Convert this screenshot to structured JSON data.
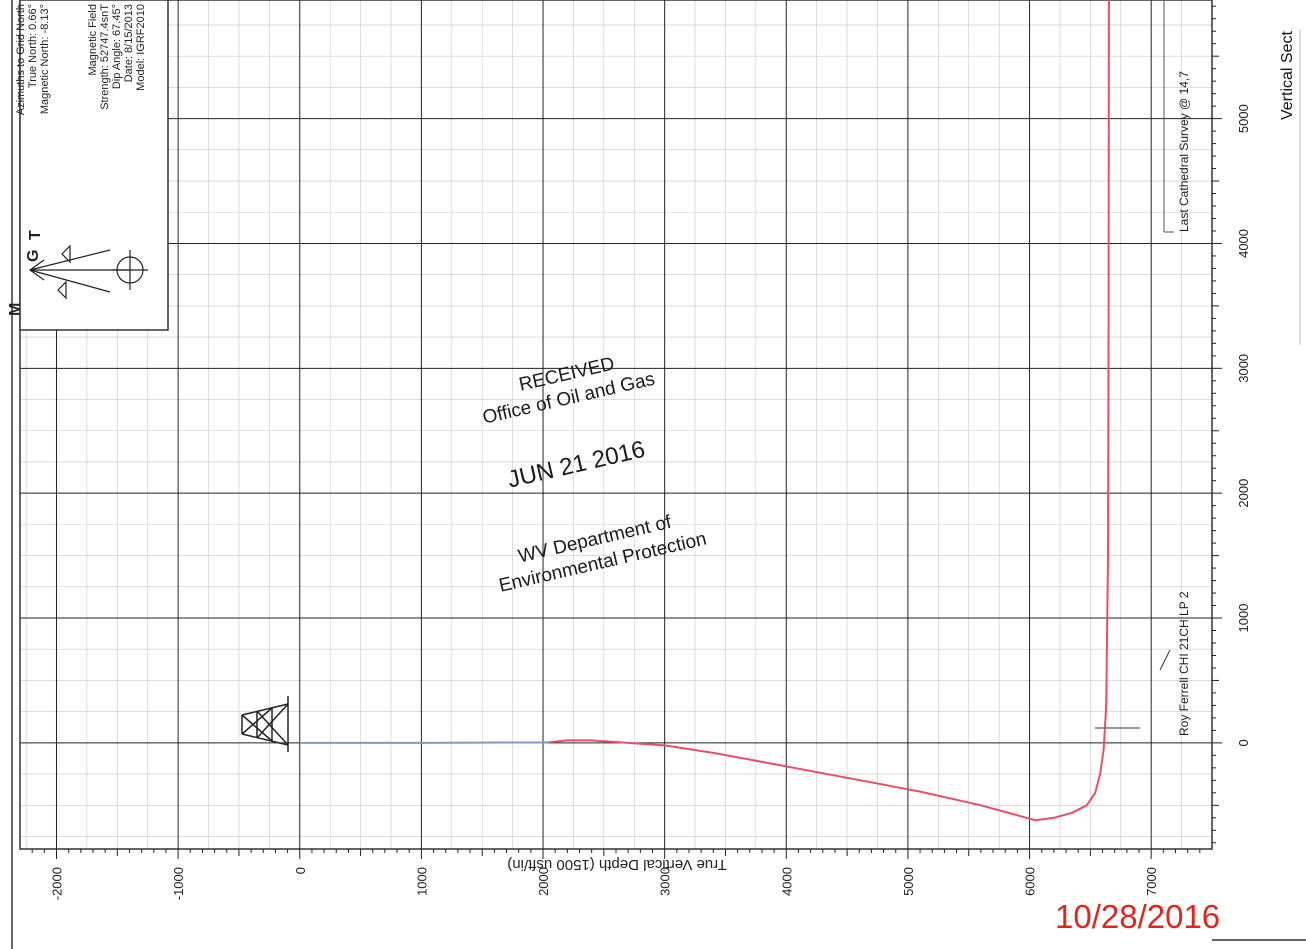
{
  "chart_data": {
    "type": "line",
    "title": "",
    "xlabel": "True Vertical Depth (1500 usft/in)",
    "ylabel": "Vertical Sect",
    "xlim": [
      -2300,
      7500
    ],
    "ylim": [
      -850,
      5950
    ],
    "x_ticks": [
      -2000,
      -1000,
      0,
      1000,
      2000,
      3000,
      4000,
      5000,
      6000,
      7000
    ],
    "y_ticks": [
      0,
      1000,
      2000,
      3000,
      4000,
      5000
    ],
    "x_tick_labels": [
      "-2000",
      "-1000",
      "0",
      "1000",
      "2000",
      "3000",
      "4000",
      "5000",
      "6000",
      "7000"
    ],
    "y_tick_labels": [
      "0",
      "1000",
      "2000",
      "3000",
      "4000",
      "5000"
    ],
    "grid": true,
    "series": [
      {
        "name": "",
        "color": "#7a9cc9",
        "x": [
          0,
          500,
          1000,
          1500,
          2000,
          2050
        ],
        "y": [
          0,
          0,
          0,
          2,
          3,
          5
        ]
      },
      {
        "name": "",
        "color": "#e8506a",
        "x": [
          2050,
          2200,
          2400,
          2700,
          3000,
          3400,
          3900,
          4500,
          5100,
          5600,
          5900,
          6050,
          6200,
          6350,
          6470,
          6540,
          6580,
          6610,
          6630,
          6645,
          6650,
          6652
        ],
        "y": [
          5,
          20,
          20,
          0,
          -20,
          -80,
          -170,
          -280,
          -390,
          -500,
          -580,
          -620,
          -600,
          -560,
          -500,
          -400,
          -250,
          -50,
          300,
          1500,
          3500,
          5950
        ]
      }
    ],
    "annotations": [
      "Roy Ferrell CHI 21CH LP 2",
      "Last Cathedral Survey @ 14,7"
    ]
  },
  "legend": {
    "azimuth_lines": [
      "Azimuths to Grid North",
      "True North: 0.66°",
      "Magnetic North: -8.13°"
    ],
    "field_lines": [
      "Magnetic Field",
      "Strength: 52747.4snT",
      "Dip Angle: 67.45°",
      "Date: 8/15/2013",
      "Model: IGRF2010"
    ],
    "letters": [
      "M",
      "G",
      "T"
    ]
  },
  "stamp": {
    "line1": "RECEIVED",
    "line2": "Office of Oil and Gas",
    "date": "JUN 21 2016",
    "line3": "WV Department of",
    "line4": "Environmental Protection"
  },
  "handwritten_date": "10/28/2016",
  "colors": {
    "grid": "#222222",
    "minor_grid": "#c8c8c8",
    "stamp_ink": "#1a1a1a",
    "date_red": "#e0261c"
  }
}
